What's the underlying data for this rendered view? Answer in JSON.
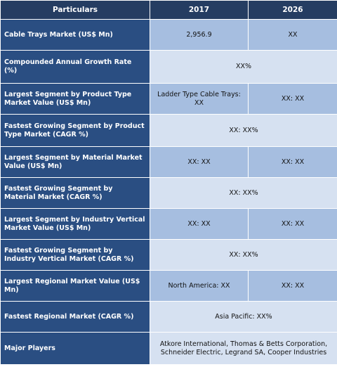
{
  "header": {
    "col1": "Particulars",
    "col2": "2017",
    "col3": "2026"
  },
  "rows": [
    {
      "label": "Cable Trays Market (US$ Mn)",
      "v2017": "2,956.9",
      "v2026": "XX"
    },
    {
      "label": "Compounded Annual Growth Rate (%)",
      "value": "XX%"
    },
    {
      "label": "Largest Segment by Product Type Market Value (US$ Mn)",
      "v2017": "Ladder Type Cable Trays: XX",
      "v2026": "XX: XX"
    },
    {
      "label": "Fastest Growing Segment by Product Type Market (CAGR %)",
      "value": "XX: XX%"
    },
    {
      "label": "Largest Segment by Material Market Value (US$ Mn)",
      "v2017": "XX: XX",
      "v2026": "XX: XX"
    },
    {
      "label": "Fastest Growing Segment by Material Market (CAGR %)",
      "value": "XX: XX%"
    },
    {
      "label": "Largest Segment by Industry Vertical Market Value (US$ Mn)",
      "v2017": "XX: XX",
      "v2026": "XX: XX"
    },
    {
      "label": "Fastest Growing Segment by Industry Vertical Market (CAGR %)",
      "value": "XX: XX%"
    },
    {
      "label": "Largest Regional Market Value (US$ Mn)",
      "v2017": "North America: XX",
      "v2026": "XX: XX"
    },
    {
      "label": "Fastest Regional Market (CAGR %)",
      "value": "Asia Pacific: XX%"
    },
    {
      "label": "Major Players",
      "value": "Atkore International, Thomas & Betts Corporation, Schneider Electric, Legrand SA, Cooper Industries"
    }
  ]
}
